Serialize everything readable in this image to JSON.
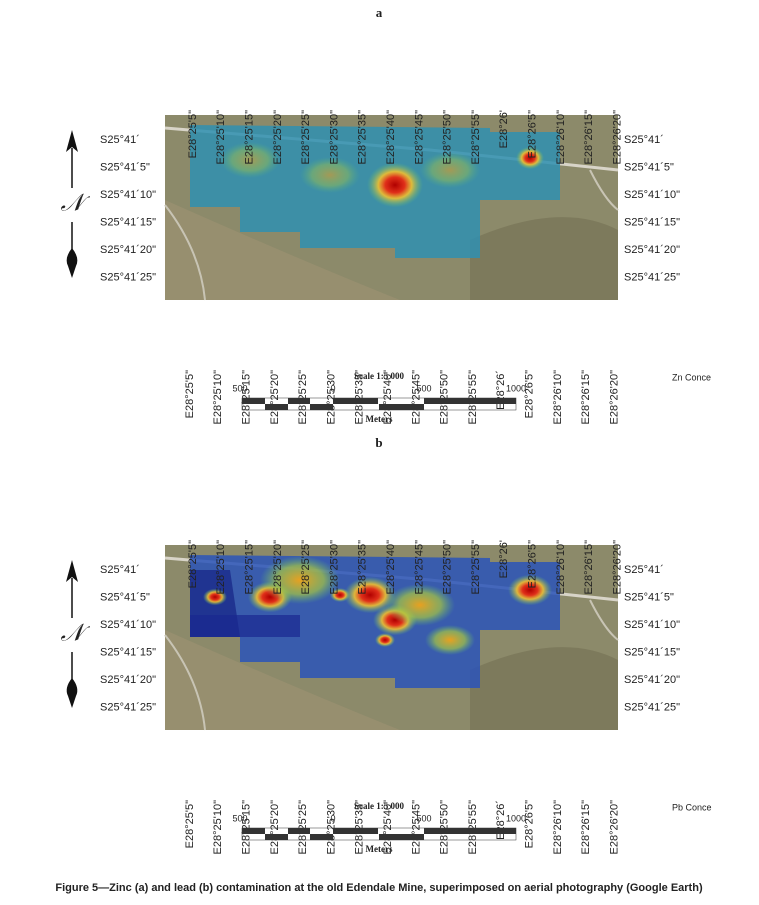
{
  "panels": [
    {
      "label": "a",
      "lon_labels_top": [
        "E28°25'5\"",
        "E28°25'10\"",
        "E28°25'15\"",
        "E28°25'20\"",
        "E28°25'25\"",
        "E28°25'30\"",
        "E28°25'35\"",
        "E28°25'40\"",
        "E28°25'45\"",
        "E28°25'50\"",
        "E28°25'55\"",
        "E28°26'",
        "E28°26'5\"",
        "E28°26'10\"",
        "E28°26'15\"",
        "E28°26'20\""
      ],
      "lon_labels_bottom": [
        "E28°25'5\"",
        "E28°25'10\"",
        "E28°25'15\"",
        "E28°25'20\"",
        "E28°25'25\"",
        "E28°25'30\"",
        "E28°25'35\"",
        "E28°25'40\"",
        "E28°25'45\"",
        "E28°25'50\"",
        "E28°25'55\"",
        "E28°26´",
        "E28°26'5\"",
        "E28°26'10\"",
        "E28°26'15\"",
        "E28°26'20\""
      ],
      "lat_labels_left": [
        "S25°41´",
        "S25°41´5\"",
        "S25°41´10\"",
        "S25°41´15\"",
        "S25°41´20\"",
        "S25°41´25\""
      ],
      "lat_labels_right": [
        "S25°41´",
        "S25°41´5\"",
        "S25°41´10\"",
        "S25°41´15\"",
        "S25°41´20\"",
        "S25°41´25\""
      ],
      "north": "𝒩",
      "scale": "Scale 1:5 000",
      "scale_ticks": [
        "500",
        "0",
        "500",
        "1000"
      ],
      "scale_unit": "Meters",
      "legend": "Zn Conce"
    },
    {
      "label": "b",
      "lon_labels_top": [
        "E28°25'5\"",
        "E28°25'10\"",
        "E28°25'15\"",
        "E28°25'20\"",
        "E28°25'25\"",
        "E28°25'30\"",
        "E28°25'35\"",
        "E28°25'40\"",
        "E28°25'45\"",
        "E28°25'50\"",
        "E28°25'55\"",
        "E28°26'",
        "E28°26'5\"",
        "E28°26'10\"",
        "E28°26'15\"",
        "E28°26'20\""
      ],
      "lon_labels_bottom": [
        "E28°25'5\"",
        "E28°25'10\"",
        "E28°25'15\"",
        "E28°25'20\"",
        "E28°25'25\"",
        "E28°25'30\"",
        "E28°25'35\"",
        "E28°25'40\"",
        "E28°25'45\"",
        "E28°25'50\"",
        "E28°25'55\"",
        "E28°26´",
        "E28°26'5\"",
        "E28°26'10\"",
        "E28°26'15\"",
        "E28°26'20\""
      ],
      "lat_labels_left": [
        "S25°41´",
        "S25°41´5\"",
        "S25°41´10\"",
        "S25°41´15\"",
        "S25°41´20\"",
        "S25°41´25\""
      ],
      "lat_labels_right": [
        "S25°41´",
        "S25°41´5\"",
        "S25°41´10\"",
        "S25°41´15\"",
        "S25°41´20\"",
        "S25°41´25\""
      ],
      "north": "𝒩",
      "scale": "Scale 1:5 000",
      "scale_ticks": [
        "500",
        "0",
        "500",
        "1000"
      ],
      "scale_unit": "Meters",
      "legend": "Pb Conce"
    }
  ],
  "caption": "Figure 5—Zinc (a) and lead (b) contamination at the old Edendale Mine, superimposed on aerial photography (Google Earth)"
}
